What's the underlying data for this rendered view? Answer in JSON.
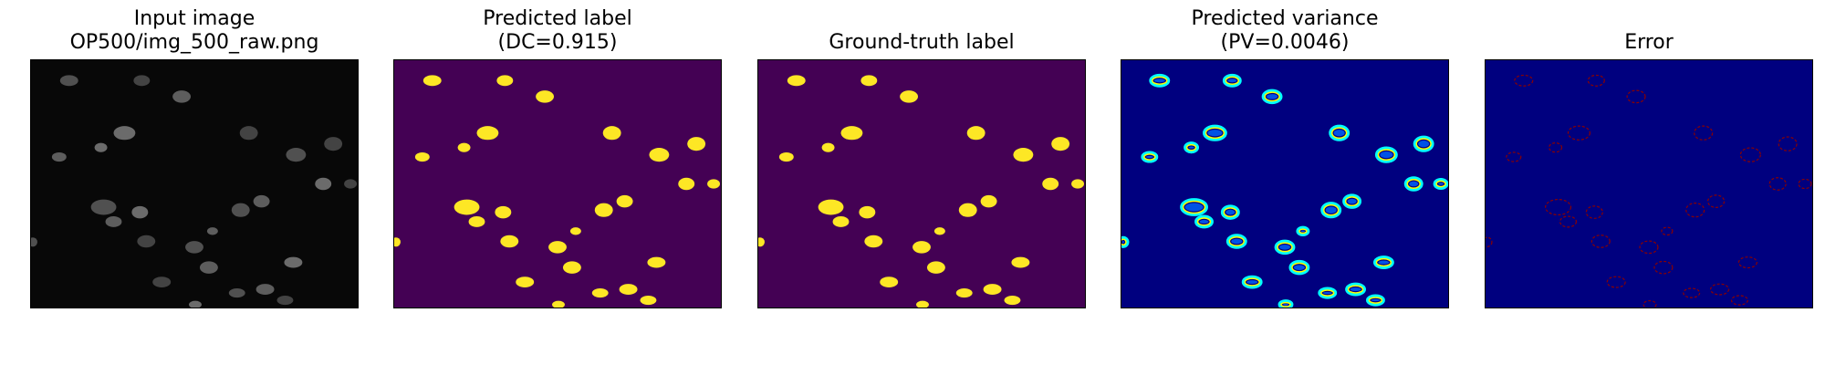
{
  "panels": [
    {
      "id": "input",
      "title_lines": [
        "Input image",
        "OP500/img_500_raw.png"
      ],
      "colors": {
        "background": "#080808",
        "cell": "#8c8c8c"
      }
    },
    {
      "id": "predicted-label",
      "title_lines": [
        "Predicted label",
        "(DC=0.915)"
      ],
      "colors": {
        "background": "#440154",
        "cell": "#fde725"
      }
    },
    {
      "id": "ground-truth-label",
      "title_lines": [
        "Ground-truth label"
      ],
      "colors": {
        "background": "#440154",
        "cell": "#fde725"
      }
    },
    {
      "id": "predicted-variance",
      "title_lines": [
        "Predicted variance",
        "(PV=0.0046)"
      ],
      "colors": {
        "background": "#00007f",
        "ring_outer": "#00ffff",
        "ring_mid": "#ffff00",
        "ring_inner": "#0066ff"
      }
    },
    {
      "id": "error",
      "title_lines": [
        "Error"
      ],
      "colors": {
        "background": "#00007f",
        "ring": "#8b0000"
      }
    }
  ]
}
